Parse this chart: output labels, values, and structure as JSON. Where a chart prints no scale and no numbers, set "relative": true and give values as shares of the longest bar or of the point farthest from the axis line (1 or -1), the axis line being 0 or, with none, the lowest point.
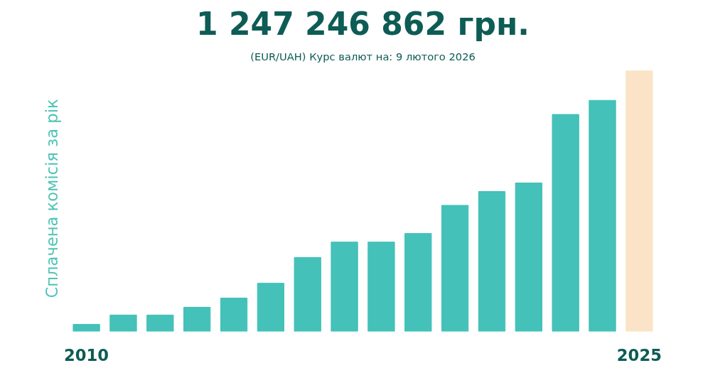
{
  "chart_data": {
    "type": "bar",
    "title": "1 247 246 862 грн.",
    "subtitle": "(EUR/UAH) Курс валют на: 9 лютого 2026",
    "ylabel": "Сплачена комісія за рік",
    "relative": true,
    "grid": false,
    "categories": [
      "2010",
      null,
      null,
      null,
      null,
      null,
      null,
      null,
      null,
      null,
      null,
      null,
      null,
      null,
      null,
      "2025"
    ],
    "values": [
      0.027,
      0.063,
      0.063,
      0.093,
      0.128,
      0.185,
      0.284,
      0.343,
      0.343,
      0.376,
      0.484,
      0.537,
      0.57,
      0.833,
      0.887,
      1
    ],
    "colors": [
      "#44c1b8",
      "#44c1b8",
      "#44c1b8",
      "#44c1b8",
      "#44c1b8",
      "#44c1b8",
      "#44c1b8",
      "#44c1b8",
      "#44c1b8",
      "#44c1b8",
      "#44c1b8",
      "#44c1b8",
      "#44c1b8",
      "#44c1b8",
      "#44c1b8",
      "#fbe3c7"
    ]
  }
}
